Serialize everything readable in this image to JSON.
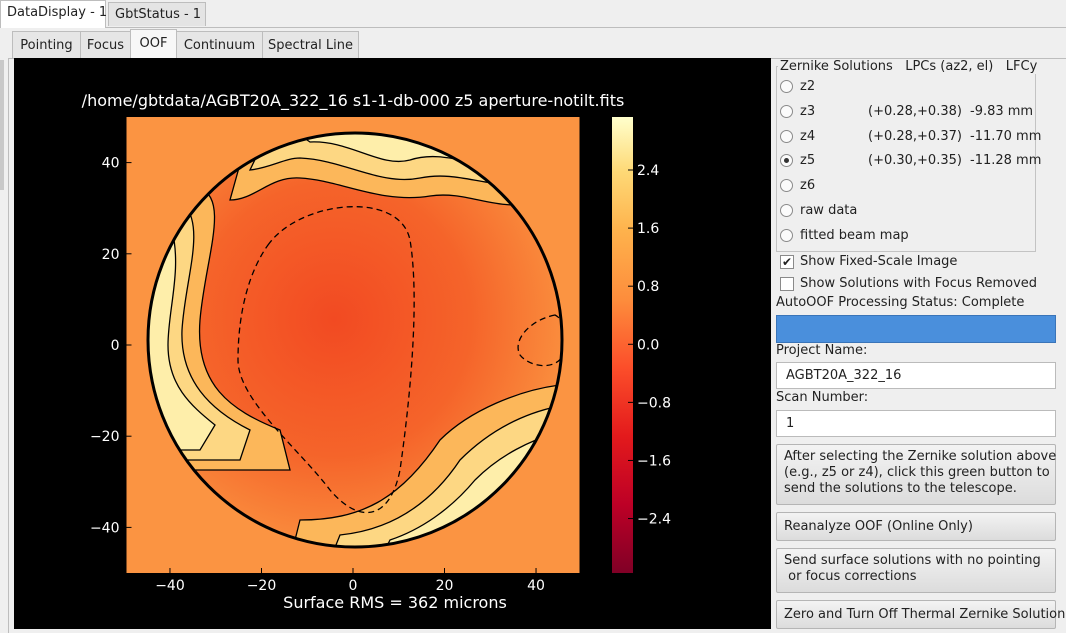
{
  "tabs": [
    "DataDisplay - 1",
    "GbtStatus - 1"
  ],
  "subtabs": [
    "Pointing",
    "Focus",
    "OOF",
    "Continuum",
    "Spectral Line"
  ],
  "chart_data": {
    "type": "heatmap",
    "title": "/home/gbtdata/AGBT20A_322_16 s1-1-db-000 z5 aperture-notilt.fits",
    "xlabel": "Surface RMS = 362 microns",
    "xlim": [
      -49.5,
      49.5
    ],
    "ylim": [
      -50,
      50
    ],
    "xticks": [
      {
        "value": -40,
        "label": "−40"
      },
      {
        "value": -20,
        "label": "−20"
      },
      0,
      20,
      40
    ],
    "yticks": [
      40,
      20,
      0,
      {
        "value": -20,
        "label": "−20"
      },
      {
        "value": -40,
        "label": "−40"
      }
    ],
    "colorbar": {
      "lim": [
        -3.15,
        3.13
      ],
      "ticks": [
        2.4,
        1.6,
        0.8,
        {
          "value": 0,
          "label": "0.0"
        },
        {
          "value": -0.8,
          "label": "−0.8"
        },
        {
          "value": -1.6,
          "label": "−1.6"
        },
        {
          "value": -2.4,
          "label": "−2.4"
        }
      ]
    }
  },
  "panel": {
    "zernike": {
      "header": [
        "Zernike Solutions",
        "LPCs (az2, el)",
        "LFCy"
      ],
      "rows": [
        {
          "label": "z2"
        },
        {
          "label": "z3",
          "lpc": "(+0.28,+0.38)",
          "lfc": "-9.83 mm"
        },
        {
          "label": "z4",
          "lpc": "(+0.28,+0.37)",
          "lfc": "-11.70 mm"
        },
        {
          "label": "z5",
          "lpc": "(+0.30,+0.35)",
          "lfc": "-11.28 mm"
        },
        {
          "label": "z6"
        },
        {
          "label": "raw data"
        },
        {
          "label": "fitted beam map"
        }
      ],
      "selected": 3
    },
    "checkboxes": [
      {
        "label": "Show Fixed-Scale Image",
        "checked": true
      },
      {
        "label": "Show Solutions with Focus Removed",
        "checked": false
      }
    ],
    "status": "AutoOOF Processing Status: Complete",
    "project_label": "Project Name:",
    "project_value": "AGBT20A_322_16",
    "scan_label": "Scan Number:",
    "scan_value": "1",
    "buttons": [
      [
        "After selecting the Zernike solution above",
        "(e.g., z5 or z4), click this green button to",
        "send the solutions to the telescope."
      ],
      [
        "Reanalyze OOF (Online Only)"
      ],
      [
        "Send surface solutions with no pointing",
        " or focus corrections"
      ],
      [
        "Zero and Turn Off Thermal Zernike Solution"
      ]
    ]
  }
}
